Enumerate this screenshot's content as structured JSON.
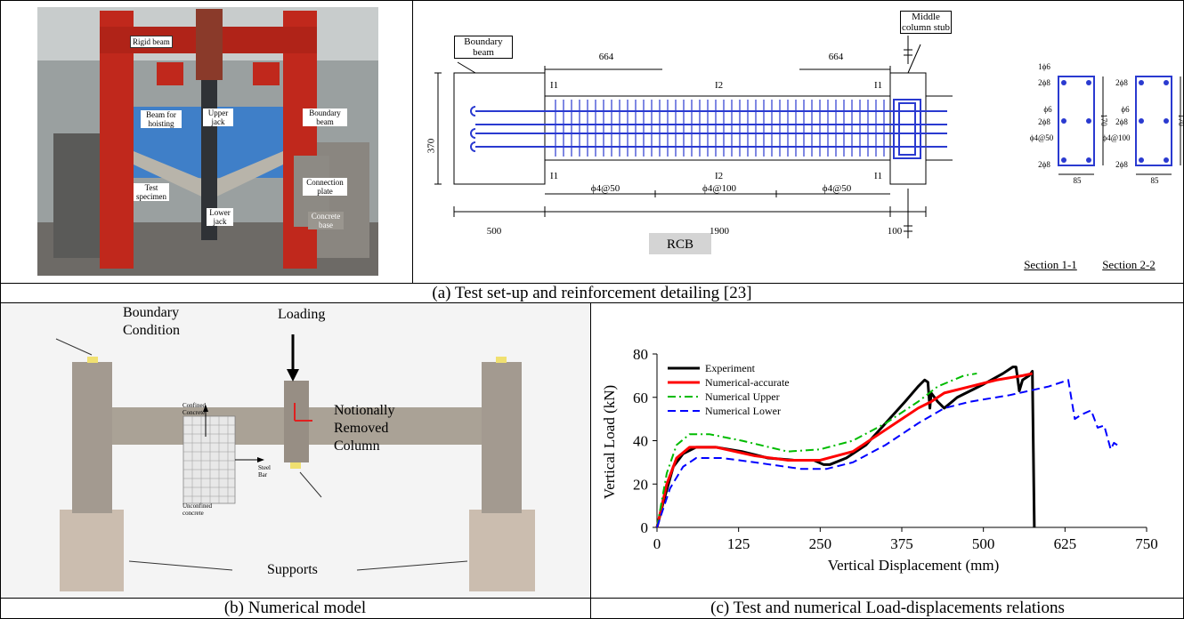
{
  "captions": [
    "(a) Test set-up and reinforcement detailing [23]",
    "(b) Numerical model",
    "(c) Test and numerical Load-displacements relations"
  ],
  "photo": {
    "labels": [
      "Rigid beam",
      "Beam for hoisting",
      "Upper jack",
      "Boundary beam",
      "Test specimen",
      "Lower jack",
      "Connection plate",
      "Concrete base"
    ]
  },
  "drawing": {
    "labels": [
      "Boundary beam",
      "Middle column stub",
      "664",
      "664",
      "370",
      "I1",
      "I2",
      "I1",
      "I1",
      "I2",
      "I1",
      "ϕ4@50",
      "ϕ4@100",
      "ϕ4@50",
      "500",
      "1900",
      "100",
      "RCB",
      "Section 1-1",
      "Section 2-2"
    ],
    "section_1": [
      "1ϕ6",
      "2ϕ8",
      "ϕ6",
      "2ϕ8",
      "ϕ4@50",
      "2ϕ8",
      "85",
      "170"
    ],
    "section_2": [
      "2ϕ8",
      "ϕ6",
      "2ϕ8",
      "ϕ4@100",
      "2ϕ8",
      "85",
      "170"
    ]
  },
  "model": {
    "labels": [
      "Boundary Condition",
      "Loading",
      "Notionally Removed Column",
      "Supports",
      "Confined Concrete",
      "Steel Bar",
      "Unconfined concrete"
    ]
  },
  "chart_data": {
    "type": "line",
    "x_label": "Vertical Displacement (mm)",
    "y_label": "Vertical Load (kN)",
    "xlim": [
      0,
      750
    ],
    "ylim": [
      0,
      80
    ],
    "xticks": [
      0,
      125,
      250,
      375,
      500,
      625,
      750
    ],
    "yticks": [
      0,
      20,
      40,
      60,
      80
    ],
    "grid": false,
    "legend": "upper left",
    "series": [
      {
        "name": "Experiment",
        "color": "#000000",
        "line_style": "solid",
        "width": 3,
        "x": [
          0,
          10,
          25,
          40,
          60,
          90,
          130,
          170,
          210,
          240,
          255,
          265,
          290,
          320,
          350,
          380,
          400,
          410,
          415,
          418,
          420,
          425,
          430,
          440,
          460,
          500,
          530,
          545,
          550,
          555,
          560,
          570,
          575,
          578
        ],
        "values": [
          0,
          12,
          28,
          34,
          37,
          37,
          35,
          32,
          31,
          31,
          29,
          29,
          32,
          38,
          48,
          58,
          65,
          68,
          67,
          55,
          62,
          60,
          58,
          55,
          60,
          66,
          71,
          74,
          74,
          63,
          68,
          70,
          72,
          0
        ]
      },
      {
        "name": "Numerical-accurate",
        "color": "#ff0000",
        "line_style": "solid",
        "width": 3,
        "x": [
          0,
          15,
          30,
          50,
          90,
          150,
          200,
          250,
          300,
          350,
          400,
          420,
          440,
          480,
          520,
          560,
          575
        ],
        "values": [
          0,
          20,
          32,
          37,
          37,
          33,
          31,
          31,
          35,
          45,
          55,
          58,
          62,
          65,
          68,
          70,
          71
        ]
      },
      {
        "name": "Numerical Upper",
        "color": "#00bb00",
        "line_style": "dash-dot",
        "width": 2,
        "x": [
          0,
          15,
          30,
          50,
          80,
          130,
          200,
          250,
          300,
          350,
          400,
          430,
          470,
          490
        ],
        "values": [
          0,
          25,
          38,
          43,
          43,
          40,
          35,
          36,
          40,
          48,
          58,
          65,
          70,
          71
        ]
      },
      {
        "name": "Numerical Lower",
        "color": "#0000ff",
        "line_style": "dash",
        "width": 2,
        "x": [
          0,
          20,
          40,
          60,
          100,
          150,
          220,
          260,
          300,
          350,
          400,
          440,
          480,
          540,
          600,
          630,
          640,
          650,
          665,
          675,
          685,
          695,
          700,
          705
        ],
        "values": [
          0,
          18,
          28,
          32,
          32,
          30,
          27,
          27,
          30,
          38,
          48,
          55,
          58,
          61,
          65,
          68,
          50,
          52,
          54,
          46,
          47,
          36,
          39,
          38
        ]
      }
    ]
  }
}
